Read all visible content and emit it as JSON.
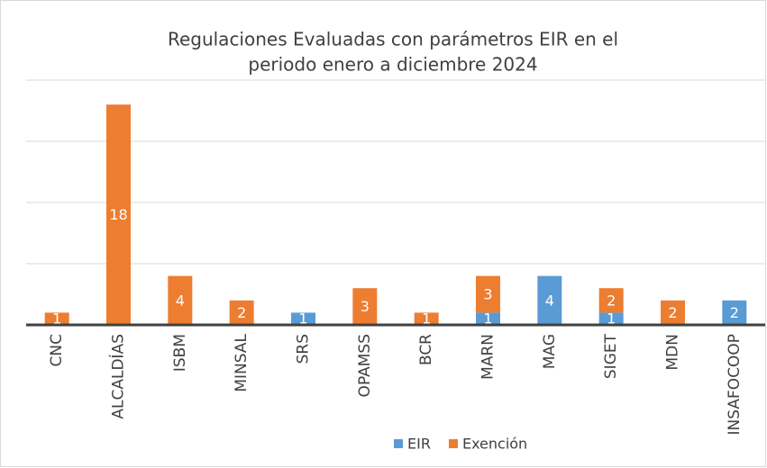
{
  "chart_data": {
    "type": "stacked_bar",
    "title": [
      "Regulaciones Evaluadas con parámetros EIR en el",
      "periodo enero a diciembre 2024"
    ],
    "categories": [
      "CNC",
      "ALCALDÍAS",
      "ISBM",
      "MINSAL",
      "SRS",
      "OPAMSS",
      "BCR",
      "MARN",
      "MAG",
      "SIGET",
      "MDN",
      "INSAFOCOOP"
    ],
    "series": [
      {
        "name": "EIR",
        "color": "#5b9bd5",
        "values": [
          null,
          null,
          null,
          null,
          1,
          null,
          null,
          1,
          4,
          1,
          null,
          2
        ]
      },
      {
        "name": "Exención",
        "color": "#ed7d31",
        "values": [
          1,
          18,
          4,
          2,
          null,
          3,
          1,
          3,
          null,
          2,
          2,
          null
        ]
      }
    ],
    "ylim": [
      0,
      20
    ],
    "gridlines": [
      0,
      5,
      10,
      15,
      20
    ],
    "grid": true,
    "legend": "bottom"
  }
}
